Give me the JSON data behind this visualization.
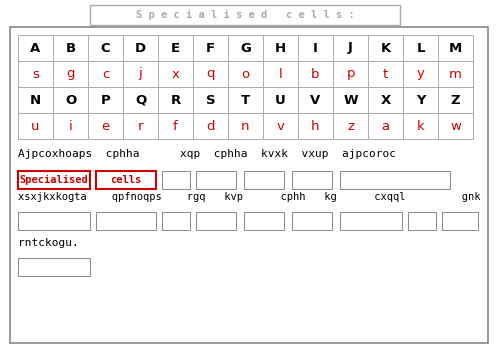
{
  "title": "S p e c i a l i s e d   c e l l s :",
  "title_color": "#aaaaaa",
  "background_color": "#ffffff",
  "table_row1_uppercase": [
    "A",
    "B",
    "C",
    "D",
    "E",
    "F",
    "G",
    "H",
    "I",
    "J",
    "K",
    "L",
    "M"
  ],
  "table_row1_lowercase": [
    "s",
    "g",
    "c",
    "j",
    "x",
    "q",
    "o",
    "l",
    "b",
    "p",
    "t",
    "y",
    "m"
  ],
  "table_row2_uppercase": [
    "N",
    "O",
    "P",
    "Q",
    "R",
    "S",
    "T",
    "U",
    "V",
    "W",
    "X",
    "Y",
    "Z"
  ],
  "table_row2_lowercase": [
    "u",
    "i",
    "e",
    "r",
    "f",
    "d",
    "n",
    "v",
    "h",
    "z",
    "a",
    "k",
    "w"
  ],
  "row_uppercase_color": "#000000",
  "row_lowercase_color": "#cc0000",
  "line1_text": "Ajpcoxhoaps  cphha      xqp  cphha  kvxk  vxup  ajpcoroc",
  "line2_label1": "Specialised",
  "line2_label1_color": "#cc0000",
  "line2_label2": "cells",
  "line2_label2_color": "#cc0000",
  "line2_text_below": "xsxjkxkogta    qpfnoqps    rgq   kvp      cphh   kg      cxqql         gnk   ok’a",
  "line3_text": "rntckogu.",
  "box_edge_color": "#888888",
  "title_box_edge": "#aaaaaa"
}
